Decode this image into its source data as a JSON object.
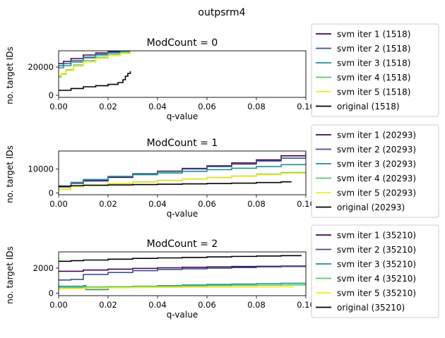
{
  "figure": {
    "suptitle": "outpsrm4"
  },
  "chart_data": [
    {
      "type": "line",
      "title": "ModCount = 0",
      "xlabel": "q-value",
      "ylabel": "no. target IDs",
      "xlim": [
        0,
        0.1
      ],
      "ylim": [
        -1500,
        31500
      ],
      "xticks": [
        0,
        0.02,
        0.04,
        0.06,
        0.08,
        0.1
      ],
      "xtick_labels": [
        "0.00",
        "0.02",
        "0.04",
        "0.06",
        "0.08",
        "0.10"
      ],
      "yticks": [
        0,
        20000
      ],
      "ytick_labels": [
        "0",
        "20000"
      ],
      "legend_position": "outside right",
      "series": [
        {
          "name": "svm iter 1 (1518)",
          "color": "#440154",
          "x": [
            0,
            0.002,
            0.005,
            0.01,
            0.015,
            0.02,
            0.025,
            0.029
          ],
          "y": [
            22500,
            24000,
            26000,
            28500,
            30000,
            31000,
            31500,
            31500
          ]
        },
        {
          "name": "svm iter 2 (1518)",
          "color": "#3b528b",
          "x": [
            0,
            0.002,
            0.005,
            0.01,
            0.015,
            0.02,
            0.025,
            0.029
          ],
          "y": [
            21000,
            22500,
            24500,
            27000,
            29000,
            30500,
            31500,
            31500
          ]
        },
        {
          "name": "svm iter 3 (1518)",
          "color": "#21918c",
          "x": [
            0,
            0.002,
            0.005,
            0.01,
            0.015,
            0.02,
            0.025,
            0.029
          ],
          "y": [
            19500,
            21000,
            23500,
            26500,
            28500,
            30000,
            31000,
            31000
          ]
        },
        {
          "name": "svm iter 4 (1518)",
          "color": "#5ec962",
          "x": [
            0,
            0.001,
            0.003,
            0.006,
            0.01,
            0.015,
            0.02,
            0.025,
            0.029
          ],
          "y": [
            13000,
            15000,
            18000,
            21500,
            24500,
            27000,
            29000,
            30000,
            30500
          ]
        },
        {
          "name": "svm iter 5 (1518)",
          "color": "#fde725",
          "x": [
            0,
            0.001,
            0.003,
            0.006,
            0.01,
            0.015,
            0.02,
            0.025,
            0.029
          ],
          "y": [
            14000,
            15500,
            17500,
            20500,
            23500,
            26000,
            28000,
            29500,
            30500
          ]
        },
        {
          "name": "original (1518)",
          "color": "#000000",
          "x": [
            0,
            0.005,
            0.01,
            0.015,
            0.02,
            0.024,
            0.026,
            0.027,
            0.028,
            0.029
          ],
          "y": [
            3500,
            4800,
            6000,
            6800,
            7700,
            9000,
            11000,
            13500,
            15500,
            17000
          ]
        }
      ]
    },
    {
      "type": "line",
      "title": "ModCount = 1",
      "xlabel": "q-value",
      "ylabel": "no. target IDs",
      "xlim": [
        0,
        0.1
      ],
      "ylim": [
        -800,
        17500
      ],
      "xticks": [
        0,
        0.02,
        0.04,
        0.06,
        0.08,
        0.1
      ],
      "xtick_labels": [
        "0.00",
        "0.02",
        "0.04",
        "0.06",
        "0.08",
        "0.10"
      ],
      "yticks": [
        0,
        10000
      ],
      "ytick_labels": [
        "0",
        "10000"
      ],
      "legend_position": "outside right",
      "series": [
        {
          "name": "svm iter 1 (20293)",
          "color": "#440154",
          "x": [
            0,
            0.005,
            0.01,
            0.02,
            0.03,
            0.04,
            0.05,
            0.06,
            0.07,
            0.08,
            0.09,
            0.1
          ],
          "y": [
            2500,
            4000,
            5000,
            6500,
            7800,
            9000,
            10200,
            11300,
            12500,
            13800,
            15500,
            16800
          ]
        },
        {
          "name": "svm iter 2 (20293)",
          "color": "#3b528b",
          "x": [
            0,
            0.005,
            0.01,
            0.02,
            0.03,
            0.04,
            0.05,
            0.06,
            0.07,
            0.08,
            0.09,
            0.1
          ],
          "y": [
            2600,
            4200,
            5300,
            6800,
            8000,
            9100,
            10000,
            11000,
            12000,
            13300,
            14500,
            15700
          ]
        },
        {
          "name": "svm iter 3 (20293)",
          "color": "#21918c",
          "x": [
            0,
            0.005,
            0.01,
            0.02,
            0.03,
            0.04,
            0.05,
            0.06,
            0.07,
            0.08,
            0.09,
            0.1
          ],
          "y": [
            2700,
            4400,
            5600,
            6900,
            7600,
            8300,
            9000,
            9700,
            10300,
            11000,
            11800,
            12500
          ]
        },
        {
          "name": "svm iter 4 (20293)",
          "color": "#5ec962",
          "x": [
            0,
            0.005,
            0.01,
            0.02,
            0.03,
            0.04,
            0.05,
            0.06,
            0.07,
            0.08,
            0.09,
            0.1
          ],
          "y": [
            1500,
            2700,
            3300,
            4000,
            4600,
            5200,
            5800,
            6400,
            7000,
            7800,
            8500,
            9000
          ]
        },
        {
          "name": "svm iter 5 (20293)",
          "color": "#fde725",
          "x": [
            0,
            0.005,
            0.01,
            0.02,
            0.03,
            0.04,
            0.05,
            0.06,
            0.07,
            0.08,
            0.09,
            0.1
          ],
          "y": [
            1400,
            2600,
            3200,
            3900,
            4500,
            5100,
            5700,
            6300,
            6900,
            7600,
            8200,
            8800
          ]
        },
        {
          "name": "original (20293)",
          "color": "#000000",
          "x": [
            0,
            0.005,
            0.01,
            0.02,
            0.03,
            0.04,
            0.05,
            0.06,
            0.07,
            0.08,
            0.09,
            0.094
          ],
          "y": [
            2800,
            3000,
            3150,
            3300,
            3450,
            3600,
            3750,
            3900,
            4050,
            4300,
            4600,
            4800
          ]
        }
      ]
    },
    {
      "type": "line",
      "title": "ModCount = 2",
      "xlabel": "q-value",
      "ylabel": "no. target IDs",
      "xlim": [
        0,
        0.1
      ],
      "ylim": [
        -200,
        3300
      ],
      "xticks": [
        0,
        0.02,
        0.04,
        0.06,
        0.08,
        0.1
      ],
      "xtick_labels": [
        "0.00",
        "0.02",
        "0.04",
        "0.06",
        "0.08",
        "0.10"
      ],
      "yticks": [
        0,
        2000
      ],
      "ytick_labels": [
        "0",
        "2000"
      ],
      "legend_position": "outside right",
      "series": [
        {
          "name": "svm iter 1 (35210)",
          "color": "#440154",
          "x": [
            0,
            0.01,
            0.02,
            0.03,
            0.04,
            0.05,
            0.06,
            0.07,
            0.08,
            0.09,
            0.1
          ],
          "y": [
            1750,
            1850,
            1920,
            1980,
            2030,
            2070,
            2100,
            2130,
            2150,
            2170,
            2180
          ]
        },
        {
          "name": "svm iter 2 (35210)",
          "color": "#3b528b",
          "x": [
            0,
            0.005,
            0.01,
            0.02,
            0.03,
            0.04,
            0.05,
            0.06,
            0.07,
            0.08,
            0.09,
            0.1
          ],
          "y": [
            1050,
            1100,
            1500,
            1650,
            1800,
            1900,
            1950,
            2000,
            2050,
            2100,
            2130,
            2150
          ]
        },
        {
          "name": "svm iter 3 (35210)",
          "color": "#21918c",
          "x": [
            0,
            0.01,
            0.011,
            0.02,
            0.03,
            0.04,
            0.05,
            0.06,
            0.07,
            0.08,
            0.09,
            0.1
          ],
          "y": [
            550,
            600,
            280,
            450,
            550,
            600,
            650,
            700,
            730,
            760,
            790,
            820
          ]
        },
        {
          "name": "svm iter 4 (35210)",
          "color": "#5ec962",
          "x": [
            0,
            0.01,
            0.02,
            0.03,
            0.04,
            0.05,
            0.06,
            0.07,
            0.08,
            0.09,
            0.1
          ],
          "y": [
            450,
            500,
            520,
            540,
            560,
            580,
            600,
            620,
            640,
            660,
            680
          ]
        },
        {
          "name": "svm iter 5 (35210)",
          "color": "#fde725",
          "x": [
            0,
            0.01,
            0.02,
            0.03,
            0.04,
            0.05,
            0.06,
            0.07,
            0.08,
            0.09,
            0.095
          ],
          "y": [
            350,
            400,
            430,
            450,
            460,
            470,
            480,
            490,
            500,
            510,
            520
          ]
        },
        {
          "name": "original (35210)",
          "color": "#000000",
          "x": [
            0,
            0.005,
            0.01,
            0.02,
            0.03,
            0.04,
            0.05,
            0.06,
            0.07,
            0.08,
            0.09,
            0.098
          ],
          "y": [
            2550,
            2600,
            2650,
            2720,
            2780,
            2820,
            2860,
            2900,
            2940,
            2970,
            3000,
            3050
          ]
        }
      ]
    }
  ]
}
